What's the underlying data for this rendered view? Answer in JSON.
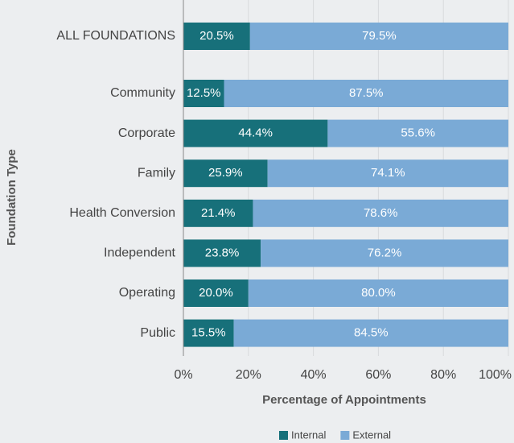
{
  "chart_data": {
    "type": "stacked-barh",
    "categories": [
      "ALL FOUNDATIONS",
      "Community",
      "Corporate",
      "Family",
      "Health Conversion",
      "Independent",
      "Operating",
      "Public"
    ],
    "series": [
      {
        "name": "Internal",
        "color": "#17707a",
        "values": [
          20.5,
          12.5,
          44.4,
          25.9,
          21.4,
          23.8,
          20.0,
          15.5
        ],
        "value_labels": [
          "20.5%",
          "12.5%",
          "44.4%",
          "25.9%",
          "21.4%",
          "23.8%",
          "20.0%",
          "15.5%"
        ]
      },
      {
        "name": "External",
        "color": "#7aaad6",
        "values": [
          79.5,
          87.5,
          55.6,
          74.1,
          78.6,
          76.2,
          80.0,
          84.5
        ],
        "value_labels": [
          "79.5%",
          "87.5%",
          "55.6%",
          "74.1%",
          "78.6%",
          "76.2%",
          "80.0%",
          "84.5%"
        ]
      }
    ],
    "xlim": [
      0,
      100
    ],
    "xticks": [
      {
        "value": 0,
        "label": "0%"
      },
      {
        "value": 20,
        "label": "20%"
      },
      {
        "value": 40,
        "label": "40%"
      },
      {
        "value": 60,
        "label": "60%"
      },
      {
        "value": 80,
        "label": "80%"
      },
      {
        "value": 100,
        "label": "100%"
      }
    ],
    "xlabel": "Percentage of Appointments",
    "ylabel": "Foundation Type",
    "grid": true,
    "legend": "bottom"
  }
}
